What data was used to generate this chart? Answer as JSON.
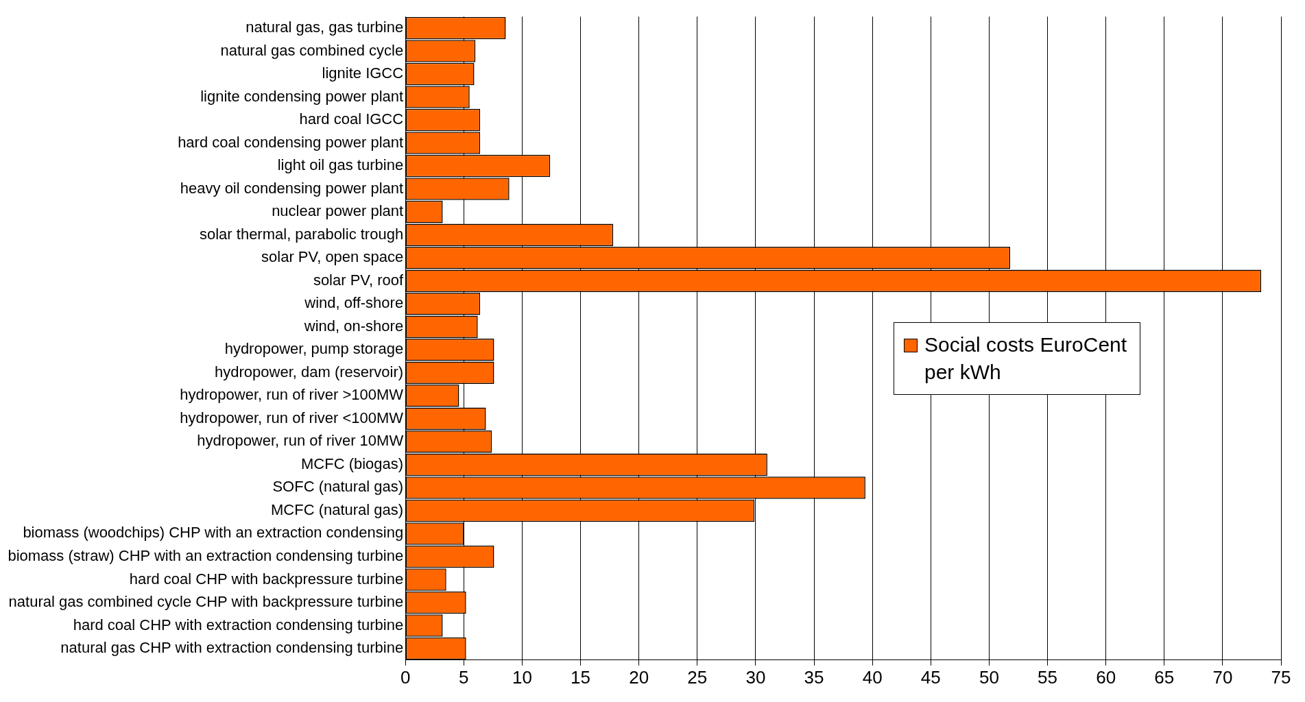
{
  "chart_data": {
    "type": "bar",
    "orientation": "horizontal",
    "categories": [
      "natural gas, gas turbine",
      "natural gas combined cycle",
      "lignite IGCC",
      "lignite condensing power plant",
      "hard coal IGCC",
      "hard coal condensing power plant",
      "light oil gas turbine",
      "heavy oil condensing power plant",
      "nuclear power plant",
      "solar thermal, parabolic trough",
      "solar PV, open space",
      "solar PV, roof",
      "wind, off-shore",
      "wind, on-shore",
      "hydropower, pump storage",
      "hydropower, dam (reservoir)",
      "hydropower, run of river >100MW",
      "hydropower, run of river <100MW",
      "hydropower, run of river 10MW",
      "MCFC (biogas)",
      "SOFC (natural gas)",
      "MCFC (natural gas)",
      "biomass (woodchips) CHP with an extraction condensing",
      "biomass (straw) CHP with an extraction condensing turbine",
      "hard coal CHP with backpressure turbine",
      "natural gas combined cycle CHP with backpressure turbine",
      "hard coal CHP with extraction condensing turbine",
      "natural gas CHP with extraction condensing turbine"
    ],
    "series": [
      {
        "name": "Social costs EuroCent per kWh",
        "color": "#ff6600",
        "values": [
          8.6,
          6.0,
          5.9,
          5.5,
          6.4,
          6.4,
          12.4,
          8.9,
          3.2,
          17.8,
          51.8,
          73.3,
          6.4,
          6.2,
          7.6,
          7.6,
          4.6,
          6.9,
          7.4,
          31.0,
          39.4,
          29.9,
          5.0,
          7.6,
          3.5,
          5.2,
          3.2,
          5.2
        ]
      }
    ],
    "xlim": [
      0,
      75
    ],
    "xticks": [
      0,
      5,
      10,
      15,
      20,
      25,
      30,
      35,
      40,
      45,
      50,
      55,
      60,
      65,
      70,
      75
    ],
    "grid": "x",
    "legend": "right"
  }
}
